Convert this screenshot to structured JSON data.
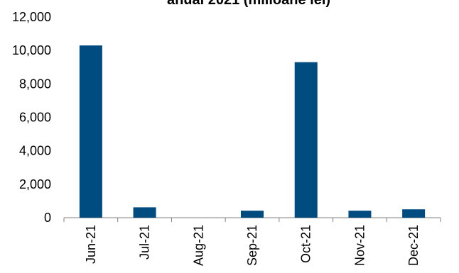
{
  "chart_data": {
    "type": "bar",
    "title": "anual 2021 (milioane lei)",
    "categories": [
      "Jun-21",
      "Jul-21",
      "Aug-21",
      "Sep-21",
      "Oct-21",
      "Nov-21",
      "Dec-21"
    ],
    "series": [
      {
        "values": [
          10300,
          620,
          0,
          420,
          9300,
          420,
          500
        ],
        "color": "#004B7F"
      }
    ],
    "ylim": [
      0,
      12000
    ],
    "yticks": [
      0,
      2000,
      4000,
      6000,
      8000,
      10000,
      12000
    ],
    "ytick_labels": [
      "0",
      "2,000",
      "4,000",
      "6,000",
      "8,000",
      "10,000",
      "12,000"
    ],
    "xlabel": "",
    "ylabel": "",
    "grid": false,
    "legend": "none",
    "axis_color": "#808080"
  }
}
